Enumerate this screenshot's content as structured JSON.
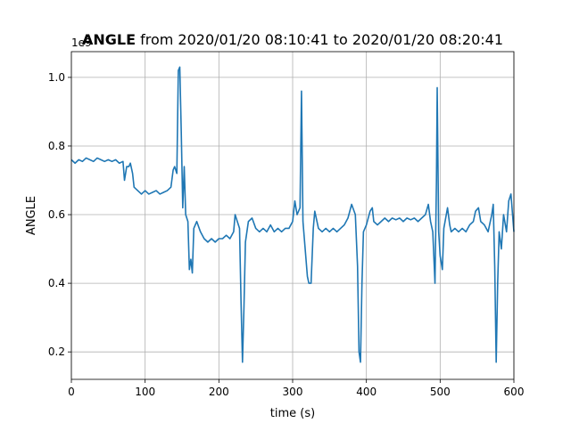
{
  "chart_data": {
    "type": "line",
    "title_bold": "ANGLE",
    "title": "from 2020/01/20 08:10:41 to 2020/01/20 08:20:41",
    "x_label": "time (s)",
    "y_label": "ANGLE",
    "y_offset_label": "1e9",
    "xlim": [
      0,
      600
    ],
    "ylim": [
      0.12,
      1.075
    ],
    "xticks": [
      0,
      100,
      200,
      300,
      400,
      500,
      600
    ],
    "yticks": [
      0.2,
      0.4,
      0.6,
      0.8,
      {
        "value": 1,
        "label": "1.0"
      }
    ],
    "grid": true,
    "series": [
      {
        "name": "ANGLE",
        "color": "#1f77b4",
        "x": [
          0,
          5,
          10,
          15,
          20,
          25,
          30,
          35,
          40,
          45,
          50,
          55,
          60,
          65,
          70,
          72,
          75,
          78,
          80,
          83,
          85,
          90,
          95,
          100,
          105,
          110,
          115,
          120,
          125,
          130,
          135,
          138,
          140,
          143,
          145,
          147,
          149,
          151,
          153,
          155,
          158,
          160,
          162,
          164,
          166,
          170,
          175,
          180,
          185,
          190,
          195,
          200,
          205,
          210,
          215,
          220,
          222,
          225,
          228,
          230,
          232,
          234,
          236,
          240,
          245,
          250,
          255,
          260,
          265,
          270,
          275,
          280,
          285,
          290,
          295,
          300,
          303,
          306,
          310,
          312,
          314,
          317,
          320,
          322,
          325,
          328,
          330,
          335,
          340,
          345,
          350,
          355,
          360,
          365,
          370,
          375,
          380,
          385,
          388,
          390,
          392,
          394,
          396,
          400,
          405,
          408,
          410,
          415,
          420,
          425,
          430,
          435,
          440,
          445,
          450,
          455,
          460,
          465,
          470,
          475,
          480,
          484,
          487,
          490,
          493,
          495,
          496,
          498,
          500,
          503,
          505,
          510,
          513,
          515,
          520,
          525,
          530,
          535,
          540,
          545,
          548,
          552,
          555,
          560,
          565,
          570,
          572,
          574,
          576,
          578,
          580,
          583,
          586,
          590,
          593,
          596,
          600
        ],
        "values": [
          0.76,
          0.75,
          0.76,
          0.755,
          0.765,
          0.76,
          0.755,
          0.765,
          0.76,
          0.755,
          0.76,
          0.755,
          0.76,
          0.75,
          0.755,
          0.7,
          0.74,
          0.74,
          0.75,
          0.72,
          0.68,
          0.67,
          0.66,
          0.67,
          0.66,
          0.665,
          0.67,
          0.66,
          0.665,
          0.67,
          0.68,
          0.73,
          0.74,
          0.72,
          1.02,
          1.03,
          0.84,
          0.62,
          0.74,
          0.6,
          0.58,
          0.44,
          0.47,
          0.43,
          0.56,
          0.58,
          0.55,
          0.53,
          0.52,
          0.53,
          0.52,
          0.53,
          0.53,
          0.54,
          0.53,
          0.55,
          0.6,
          0.58,
          0.56,
          0.35,
          0.17,
          0.33,
          0.52,
          0.58,
          0.59,
          0.56,
          0.55,
          0.56,
          0.55,
          0.57,
          0.55,
          0.56,
          0.55,
          0.56,
          0.56,
          0.58,
          0.64,
          0.6,
          0.62,
          0.96,
          0.58,
          0.5,
          0.42,
          0.4,
          0.4,
          0.56,
          0.61,
          0.56,
          0.55,
          0.56,
          0.55,
          0.56,
          0.55,
          0.56,
          0.57,
          0.59,
          0.63,
          0.6,
          0.45,
          0.2,
          0.17,
          0.4,
          0.55,
          0.57,
          0.61,
          0.62,
          0.58,
          0.57,
          0.58,
          0.59,
          0.58,
          0.59,
          0.585,
          0.59,
          0.58,
          0.59,
          0.585,
          0.59,
          0.58,
          0.59,
          0.6,
          0.63,
          0.58,
          0.55,
          0.4,
          0.7,
          0.97,
          0.55,
          0.48,
          0.44,
          0.56,
          0.62,
          0.57,
          0.55,
          0.56,
          0.55,
          0.56,
          0.55,
          0.57,
          0.58,
          0.61,
          0.62,
          0.58,
          0.57,
          0.55,
          0.6,
          0.63,
          0.45,
          0.17,
          0.4,
          0.55,
          0.5,
          0.6,
          0.55,
          0.64,
          0.66,
          0.55
        ]
      }
    ]
  }
}
